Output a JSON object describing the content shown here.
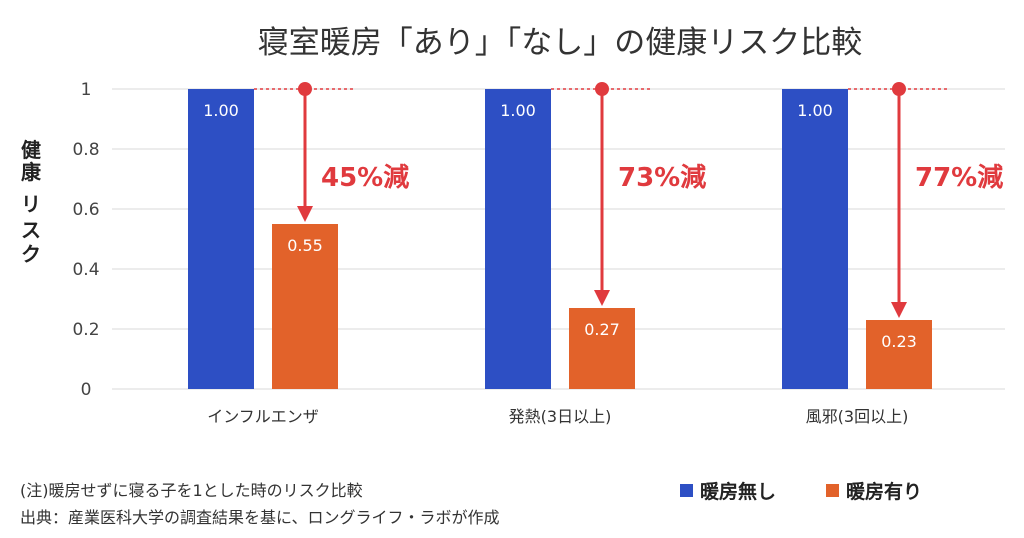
{
  "chart_data": {
    "type": "bar",
    "title": "寝室暖房「あり」「なし」の健康リスク比較",
    "ylabel": "健康リスク",
    "ylim": [
      0,
      1
    ],
    "yticks": [
      "0",
      "0.2",
      "0.4",
      "0.6",
      "0.8",
      "1"
    ],
    "yticks_values": [
      0,
      0.2,
      0.4,
      0.6,
      0.8,
      1
    ],
    "grid": true,
    "categories": [
      "インフルエンザ",
      "発熱(3日以上)",
      "風邪(3回以上)"
    ],
    "series": [
      {
        "name": "暖房無し",
        "color": "#2d4fc4",
        "values": [
          1.0,
          1.0,
          1.0
        ],
        "labels": [
          "1.00",
          "1.00",
          "1.00"
        ]
      },
      {
        "name": "暖房有り",
        "color": "#e2622a",
        "values": [
          0.55,
          0.27,
          0.23
        ],
        "labels": [
          "0.55",
          "0.27",
          "0.23"
        ]
      }
    ],
    "annotations": [
      "45%減",
      "73%減",
      "77%減"
    ],
    "annotation_color": "#e03a3e",
    "legend_position": "bottom-right",
    "notes": [
      "(注)暖房せずに寝る子を1とした時のリスク比較",
      "出典：産業医科大学の調査結果を基に、ロングライフ・ラボが作成"
    ]
  }
}
